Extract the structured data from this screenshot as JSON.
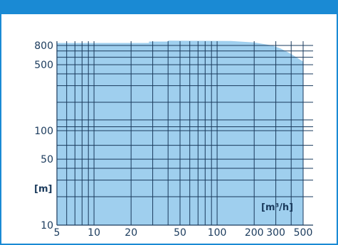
{
  "colors": {
    "accent": "#1a8ad4",
    "area": "#9fcfee",
    "grid": "#1a3a5c",
    "text": "#1a3a5c"
  },
  "chart_data": {
    "type": "area",
    "xscale": "log",
    "yscale": "log",
    "xlim": [
      5,
      500
    ],
    "ylim": [
      10,
      800
    ],
    "grid": true,
    "xlabel": "[m³/h]",
    "ylabel": "[m]",
    "x_ticks": [
      5,
      10,
      20,
      50,
      100,
      200,
      300,
      500
    ],
    "x_tick_labels": [
      "5",
      "10",
      "20",
      "50",
      "100",
      "200",
      "300",
      "500"
    ],
    "y_ticks": [
      10,
      50,
      100,
      500,
      800
    ],
    "y_tick_labels": [
      "10",
      "50",
      "100",
      "500",
      "800"
    ],
    "x_grid": [
      6,
      7,
      8,
      9,
      10,
      20,
      30,
      40,
      50,
      60,
      70,
      80,
      90,
      100,
      200,
      300,
      400,
      500
    ],
    "y_grid": [
      20,
      30,
      40,
      50,
      70,
      100,
      110,
      130,
      200,
      300,
      400,
      500,
      600,
      700,
      800
    ],
    "envelope": {
      "x": [
        5,
        28,
        28,
        40,
        40,
        130,
        200,
        280,
        330,
        400,
        500
      ],
      "y": [
        850,
        850,
        880,
        880,
        900,
        890,
        860,
        800,
        740,
        650,
        540
      ]
    }
  }
}
